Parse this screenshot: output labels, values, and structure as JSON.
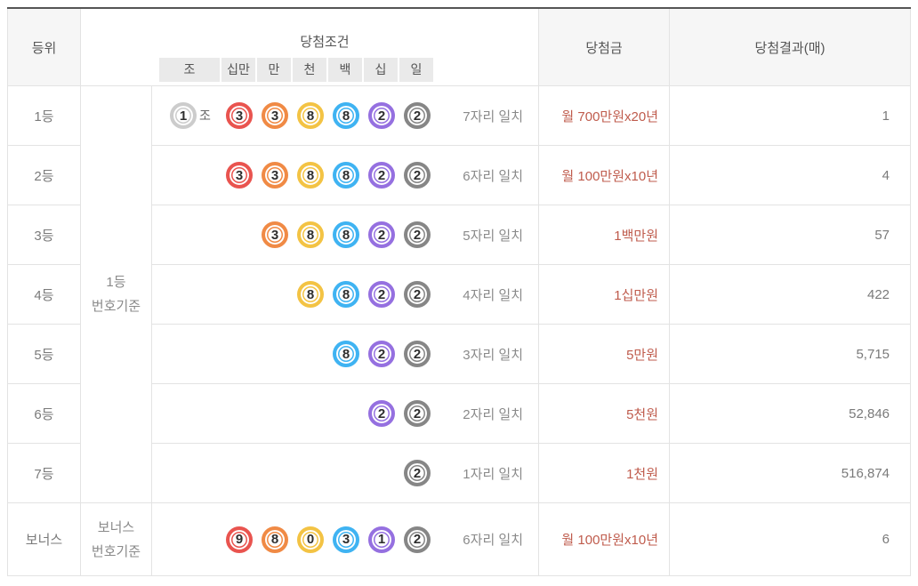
{
  "headers": {
    "rank": "등위",
    "condition": "당첨조건",
    "prize": "당첨금",
    "result": "당첨결과(매)"
  },
  "digit_positions": [
    "조",
    "십만",
    "만",
    "천",
    "백",
    "십",
    "일"
  ],
  "criteria": {
    "main": [
      "1등",
      "번호기준"
    ],
    "bonus": [
      "보너스",
      "번호기준"
    ]
  },
  "colors": {
    "jo_ball": "#cccccc",
    "position_balls": [
      "#e9544f",
      "#f08a45",
      "#f3c344",
      "#3fb3f2",
      "#9570e0",
      "#868686"
    ],
    "prize_text": "#bf5b4c"
  },
  "rows": [
    {
      "rank": "1등",
      "jo": "1",
      "jo_label": "조",
      "digits": [
        "3",
        "3",
        "8",
        "8",
        "2",
        "2"
      ],
      "match": "7자리 일치",
      "prize": "월 700만원x20년",
      "result": "1",
      "bonus": false
    },
    {
      "rank": "2등",
      "jo": null,
      "digits": [
        "3",
        "3",
        "8",
        "8",
        "2",
        "2"
      ],
      "match": "6자리 일치",
      "prize": "월 100만원x10년",
      "result": "4",
      "bonus": false
    },
    {
      "rank": "3등",
      "jo": null,
      "digits": [
        null,
        "3",
        "8",
        "8",
        "2",
        "2"
      ],
      "match": "5자리 일치",
      "prize": "1백만원",
      "result": "57",
      "bonus": false
    },
    {
      "rank": "4등",
      "jo": null,
      "digits": [
        null,
        null,
        "8",
        "8",
        "2",
        "2"
      ],
      "match": "4자리 일치",
      "prize": "1십만원",
      "result": "422",
      "bonus": false
    },
    {
      "rank": "5등",
      "jo": null,
      "digits": [
        null,
        null,
        null,
        "8",
        "2",
        "2"
      ],
      "match": "3자리 일치",
      "prize": "5만원",
      "result": "5,715",
      "bonus": false
    },
    {
      "rank": "6등",
      "jo": null,
      "digits": [
        null,
        null,
        null,
        null,
        "2",
        "2"
      ],
      "match": "2자리 일치",
      "prize": "5천원",
      "result": "52,846",
      "bonus": false
    },
    {
      "rank": "7등",
      "jo": null,
      "digits": [
        null,
        null,
        null,
        null,
        null,
        "2"
      ],
      "match": "1자리 일치",
      "prize": "1천원",
      "result": "516,874",
      "bonus": false
    },
    {
      "rank": "보너스",
      "jo": null,
      "digits": [
        "9",
        "8",
        "0",
        "3",
        "1",
        "2"
      ],
      "match": "6자리 일치",
      "prize": "월 100만원x10년",
      "result": "6",
      "bonus": true
    }
  ]
}
